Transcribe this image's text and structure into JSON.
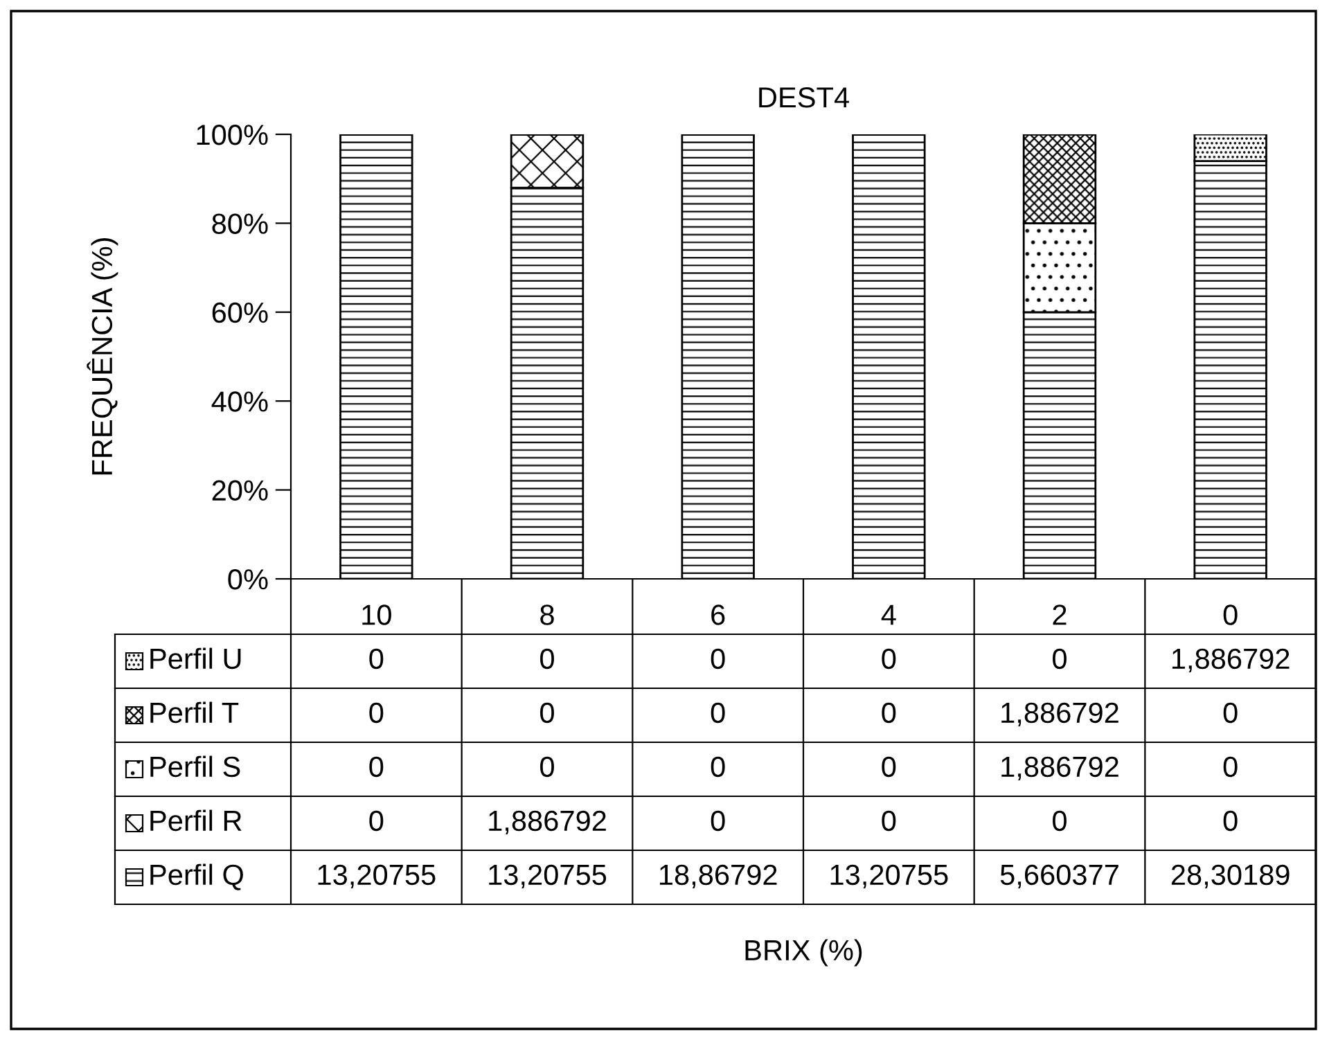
{
  "chart_data": {
    "type": "bar",
    "title": "DEST4",
    "annotations": [
      "BRIX (%)"
    ],
    "ylabel": "FREQUÊNCIA (%)",
    "stacked": true,
    "legend": "bottom",
    "categories": [
      "10",
      "8",
      "6",
      "4",
      "2",
      "0"
    ],
    "ylim": [
      0,
      100
    ],
    "yticks": [
      {
        "value": 0,
        "label": "0%"
      },
      {
        "value": 20,
        "label": "20%"
      },
      {
        "value": 40,
        "label": "40%"
      },
      {
        "value": 60,
        "label": "60%"
      },
      {
        "value": 80,
        "label": "80%"
      },
      {
        "value": 100,
        "label": "100%"
      }
    ],
    "series": [
      {
        "name": "Perfil Q",
        "color": "#000000",
        "values": [
          100,
          88,
          100,
          100,
          60,
          94
        ],
        "value_labels": [
          "13,20755",
          "13,20755",
          "18,86792",
          "13,20755",
          "5,660377",
          "28,30189"
        ]
      },
      {
        "name": "Perfil R",
        "color": "#000000",
        "values": [
          0,
          12,
          0,
          0,
          0,
          0
        ],
        "value_labels": [
          "0",
          "1,886792",
          "0",
          "0",
          "0",
          "0"
        ]
      },
      {
        "name": "Perfil S",
        "color": "#000000",
        "values": [
          0,
          0,
          0,
          0,
          20,
          0
        ],
        "value_labels": [
          "0",
          "0",
          "0",
          "0",
          "1,886792",
          "0"
        ]
      },
      {
        "name": "Perfil T",
        "color": "#000000",
        "values": [
          0,
          0,
          0,
          0,
          20,
          0
        ],
        "value_labels": [
          "0",
          "0",
          "0",
          "0",
          "1,886792",
          "0"
        ]
      },
      {
        "name": "Perfil U",
        "color": "#000000",
        "values": [
          0,
          0,
          0,
          0,
          0,
          6
        ],
        "value_labels": [
          "0",
          "0",
          "0",
          "0",
          "0",
          "1,886792"
        ]
      }
    ]
  }
}
